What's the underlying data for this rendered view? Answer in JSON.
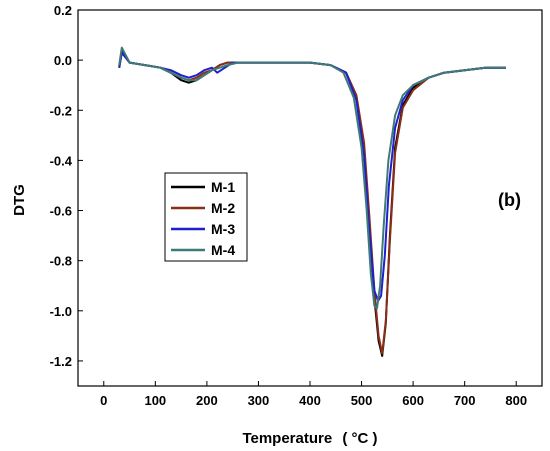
{
  "chart_data": {
    "type": "line",
    "title": "",
    "xlabel": "Temperature",
    "xlabel_unit": "( °C )",
    "ylabel": "DTG",
    "annotation": "(b)",
    "xlim": [
      -50,
      850
    ],
    "ylim": [
      -1.3,
      0.2
    ],
    "xticks": [
      0,
      100,
      200,
      300,
      400,
      500,
      600,
      700,
      800
    ],
    "yticks": [
      0.2,
      0.0,
      -0.2,
      -0.4,
      -0.6,
      -0.8,
      -1.0,
      -1.2
    ],
    "ytick_labels": [
      "0.2",
      "0.0",
      "-0.2",
      "-0.4",
      "-0.6",
      "-0.8",
      "-1.0",
      "-1.2"
    ],
    "legend_position": "center-left",
    "grid": false,
    "series": [
      {
        "name": "M-1",
        "color": "#000000",
        "x": [
          30,
          35,
          50,
          80,
          110,
          130,
          150,
          165,
          180,
          195,
          210,
          225,
          240,
          260,
          300,
          350,
          400,
          440,
          470,
          490,
          505,
          515,
          525,
          533,
          540,
          547,
          555,
          565,
          580,
          600,
          630,
          660,
          700,
          740,
          780
        ],
        "y": [
          -0.03,
          0.04,
          -0.01,
          -0.02,
          -0.03,
          -0.05,
          -0.08,
          -0.09,
          -0.08,
          -0.06,
          -0.04,
          -0.02,
          -0.01,
          -0.01,
          -0.01,
          -0.01,
          -0.01,
          -0.02,
          -0.05,
          -0.15,
          -0.35,
          -0.65,
          -0.95,
          -1.12,
          -1.18,
          -1.05,
          -0.7,
          -0.35,
          -0.18,
          -0.11,
          -0.07,
          -0.05,
          -0.04,
          -0.03,
          -0.03
        ]
      },
      {
        "name": "M-2",
        "color": "#8B2E16",
        "x": [
          30,
          35,
          50,
          80,
          110,
          130,
          150,
          165,
          180,
          195,
          210,
          225,
          240,
          260,
          300,
          350,
          400,
          440,
          470,
          490,
          505,
          515,
          525,
          533,
          540,
          547,
          555,
          565,
          580,
          600,
          630,
          660,
          700,
          740,
          780
        ],
        "y": [
          -0.03,
          0.03,
          -0.01,
          -0.02,
          -0.03,
          -0.05,
          -0.07,
          -0.08,
          -0.07,
          -0.05,
          -0.04,
          -0.02,
          -0.01,
          -0.01,
          -0.01,
          -0.01,
          -0.01,
          -0.02,
          -0.05,
          -0.14,
          -0.33,
          -0.62,
          -0.92,
          -1.1,
          -1.17,
          -1.04,
          -0.72,
          -0.37,
          -0.19,
          -0.12,
          -0.07,
          -0.05,
          -0.04,
          -0.03,
          -0.03
        ]
      },
      {
        "name": "M-3",
        "color": "#1F1FCC",
        "x": [
          30,
          35,
          50,
          80,
          110,
          130,
          150,
          165,
          180,
          195,
          210,
          220,
          235,
          250,
          270,
          300,
          350,
          400,
          440,
          470,
          490,
          505,
          515,
          525,
          532,
          538,
          545,
          553,
          565,
          580,
          600,
          630,
          660,
          700,
          740,
          780
        ],
        "y": [
          -0.03,
          0.03,
          -0.01,
          -0.02,
          -0.03,
          -0.04,
          -0.06,
          -0.07,
          -0.06,
          -0.04,
          -0.03,
          -0.05,
          -0.03,
          -0.01,
          -0.01,
          -0.01,
          -0.01,
          -0.01,
          -0.02,
          -0.05,
          -0.16,
          -0.38,
          -0.68,
          -0.92,
          -0.96,
          -0.94,
          -0.78,
          -0.5,
          -0.27,
          -0.16,
          -0.1,
          -0.07,
          -0.05,
          -0.04,
          -0.03,
          -0.03
        ]
      },
      {
        "name": "M-4",
        "color": "#3E7A78",
        "x": [
          30,
          35,
          50,
          80,
          110,
          130,
          150,
          165,
          180,
          195,
          210,
          225,
          240,
          260,
          300,
          350,
          400,
          440,
          465,
          485,
          500,
          510,
          518,
          525,
          530,
          536,
          543,
          552,
          565,
          580,
          600,
          630,
          660,
          700,
          740,
          780
        ],
        "y": [
          -0.02,
          0.05,
          -0.01,
          -0.02,
          -0.03,
          -0.05,
          -0.07,
          -0.08,
          -0.08,
          -0.06,
          -0.04,
          -0.03,
          -0.02,
          -0.01,
          -0.01,
          -0.01,
          -0.01,
          -0.02,
          -0.05,
          -0.15,
          -0.35,
          -0.6,
          -0.85,
          -0.98,
          -0.99,
          -0.9,
          -0.66,
          -0.4,
          -0.22,
          -0.14,
          -0.1,
          -0.07,
          -0.05,
          -0.04,
          -0.03,
          -0.03
        ]
      }
    ]
  }
}
